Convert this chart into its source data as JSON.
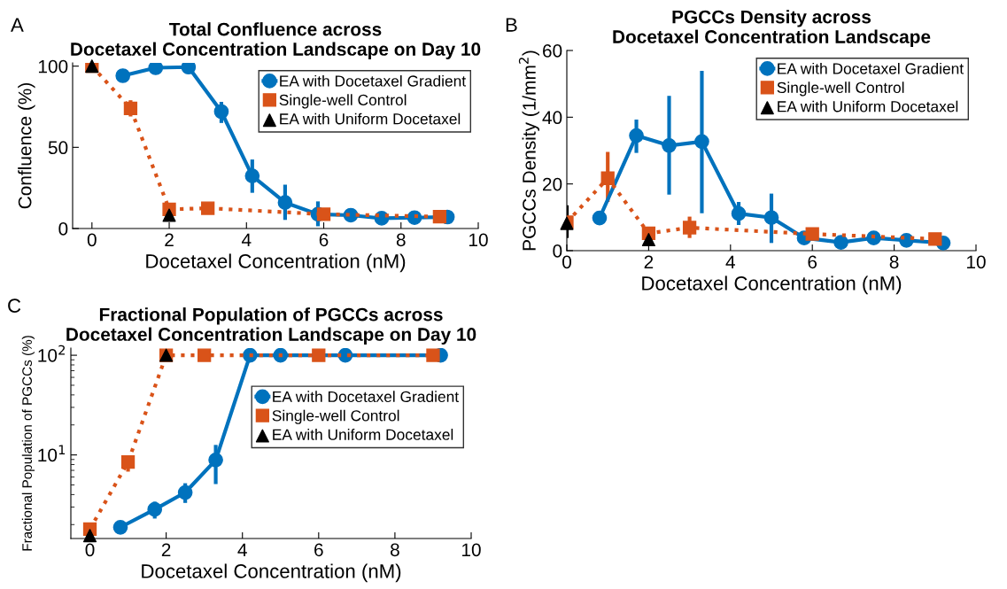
{
  "chart_data": [
    {
      "type": "line",
      "title": "Total Confluence across\nDocetaxel Concentration Landscape on Day 10",
      "xlabel": "Docetaxel Concentration (nM)",
      "ylabel": "Confluence (%)",
      "annotations": [
        "A"
      ],
      "xlim": [
        -0.5,
        10
      ],
      "xticks": [
        0,
        2,
        4,
        6,
        8,
        10
      ],
      "ylim": [
        0,
        102
      ],
      "yticks": [
        0,
        50,
        100
      ],
      "grid": false,
      "legend": "top right",
      "series": [
        {
          "name": "EA with Docetaxel Gradient",
          "color": "#0072bd",
          "marker": "circle",
          "line_style": "solid",
          "x": [
            0.8,
            1.65,
            2.5,
            3.35,
            4.15,
            5.0,
            5.85,
            6.7,
            7.5,
            8.35,
            9.2
          ],
          "values": [
            94.1,
            99,
            99.4,
            72,
            32.4,
            16,
            8.8,
            8.2,
            6.3,
            6.7,
            7.1
          ],
          "errors": [
            null,
            null,
            null,
            [
              65,
              78
            ],
            [
              22,
              42.5
            ],
            [
              5.3,
              27
            ],
            [
              1.4,
              16.7
            ],
            null,
            null,
            [
              3.3,
              10.8
            ],
            null
          ]
        },
        {
          "name": "Single-well Control",
          "color": "#d95319",
          "marker": "square",
          "line_style": "dotted",
          "x": [
            0,
            1,
            2,
            3,
            6,
            9
          ],
          "values": [
            100,
            74,
            11.8,
            12.5,
            8.8,
            7.3
          ],
          "errors": [
            null,
            [
              69,
              79
            ],
            null,
            null,
            null,
            null
          ]
        },
        {
          "name": "EA with Uniform Docetaxel",
          "type": "scatter",
          "color": "#000000",
          "marker": "triangle",
          "x": [
            0,
            2
          ],
          "values": [
            100,
            8.2
          ]
        }
      ]
    },
    {
      "type": "line",
      "title": "PGCCs Density across\nDocetaxel Concentration Landscape",
      "xlabel": "Docetaxel Concentration (nM)",
      "ylabel": "PGCCs Density (1/mm$^{2}$)",
      "annotations": [
        "B"
      ],
      "xlim": [
        0,
        10
      ],
      "xticks": [
        0,
        2,
        4,
        6,
        8,
        10
      ],
      "ylim": [
        0,
        60
      ],
      "yticks": [
        0,
        20,
        40,
        60
      ],
      "grid": false,
      "legend": "top right",
      "series": [
        {
          "name": "EA with Docetaxel Gradient",
          "color": "#0072bd",
          "marker": "circle",
          "line_style": "solid",
          "x": [
            0.8,
            1.7,
            2.5,
            3.3,
            4.2,
            5.0,
            5.8,
            6.7,
            7.5,
            8.3,
            9.2
          ],
          "values": [
            9.8,
            34.5,
            31.5,
            32.7,
            11.1,
            9.9,
            3.8,
            2.5,
            3.8,
            3.1,
            2.3
          ],
          "errors": [
            null,
            [
              29.3,
              39.3
            ],
            [
              16.8,
              46.4
            ],
            [
              11.2,
              53.9
            ],
            [
              7.7,
              14.6
            ],
            [
              2.3,
              17.1
            ],
            null,
            null,
            null,
            null,
            null
          ]
        },
        {
          "name": "Single-well Control",
          "color": "#d95319",
          "marker": "square",
          "line_style": "dotted",
          "x": [
            0,
            1,
            2,
            3,
            6,
            9
          ],
          "values": [
            8.5,
            21.7,
            5.2,
            6.9,
            5.0,
            3.5
          ],
          "errors": [
            null,
            [
              14.6,
              29.6
            ],
            null,
            [
              3.8,
              10.2
            ],
            null,
            null
          ]
        },
        {
          "name": "EA with Uniform Docetaxel",
          "type": "scatter",
          "color": "#000000",
          "marker": "triangle",
          "x": [
            0,
            2
          ],
          "values": [
            8.2,
            3.3
          ],
          "errors": [
            [
              3.8,
              13.6
            ],
            null
          ]
        }
      ]
    },
    {
      "type": "line",
      "title": "Fractional Population of PGCCs across\nDocetaxel Concentration Landscape on Day 10",
      "xlabel": "Docetaxel Concentration (nM)",
      "ylabel": "Fractional Population of PGCCs (%)",
      "annotations": [
        "C"
      ],
      "log": "y",
      "xlim": [
        -0.5,
        10
      ],
      "xticks": [
        0,
        2,
        4,
        6,
        8,
        10
      ],
      "ylim": [
        1.45,
        118
      ],
      "yticks": [
        {
          "value": 10,
          "label": "10$^{1}$"
        },
        {
          "value": 100,
          "label": "10$^{2}$"
        }
      ],
      "grid": false,
      "legend": "top right",
      "series": [
        {
          "name": "EA with Docetaxel Gradient",
          "color": "#0072bd",
          "marker": "circle",
          "line_style": "solid",
          "x": [
            0.8,
            1.7,
            2.5,
            3.3,
            4.2,
            5.0,
            6.7,
            9.2
          ],
          "values": [
            1.88,
            2.84,
            4.2,
            8.9,
            100,
            100,
            100,
            100
          ],
          "errors": [
            null,
            [
              2.3,
              3.4
            ],
            [
              3.3,
              5.2
            ],
            [
              5.1,
              12.6
            ],
            null,
            null,
            null,
            null
          ]
        },
        {
          "name": "Single-well Control",
          "color": "#d95319",
          "marker": "square",
          "line_style": "dotted",
          "x": [
            0,
            1,
            2,
            3,
            6,
            9
          ],
          "values": [
            1.8,
            8.5,
            100,
            100,
            100,
            100
          ],
          "errors": [
            null,
            [
              6.8,
              9.7
            ],
            null,
            null,
            null,
            null
          ]
        },
        {
          "name": "EA with Uniform Docetaxel",
          "type": "scatter",
          "color": "#000000",
          "marker": "triangle",
          "x": [
            0,
            2
          ],
          "values": [
            1.55,
            100
          ]
        }
      ]
    }
  ]
}
